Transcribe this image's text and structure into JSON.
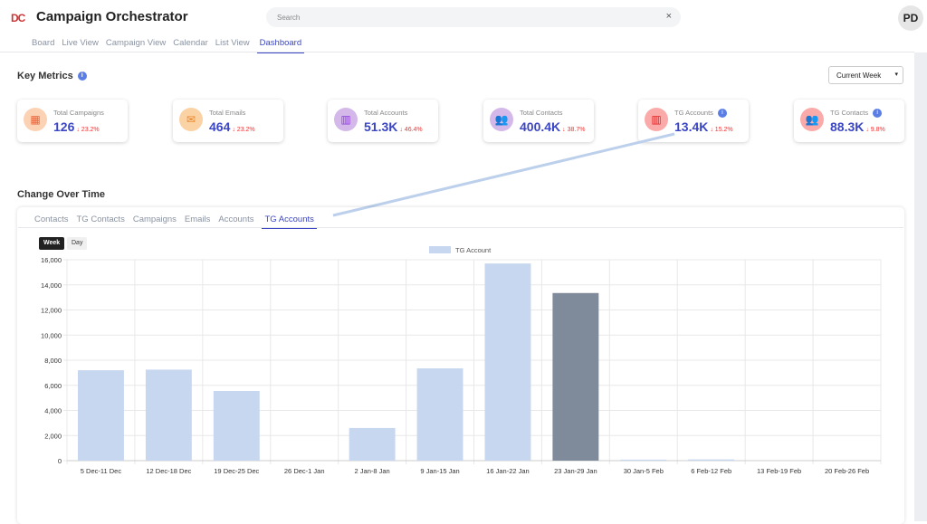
{
  "header": {
    "logo": "DC",
    "title": "Campaign Orchestrator",
    "search_placeholder": "Search",
    "clear": "×",
    "avatar": "PD"
  },
  "nav": [
    "Board",
    "Live View",
    "Campaign View",
    "Calendar",
    "List View",
    "Dashboard"
  ],
  "key_metrics": {
    "title": "Key Metrics",
    "info": "i",
    "period": "Current Week",
    "chevron": "▾"
  },
  "cards": [
    {
      "label": "Total Campaigns",
      "value": "126",
      "change": "↓ 23.2%",
      "icon": "campaign-icon",
      "glyph": "▦",
      "color": "#e8643a",
      "bg": "#fbd2b4"
    },
    {
      "label": "Total Emails",
      "value": "464",
      "change": "↓ 23.2%",
      "icon": "email-icon",
      "glyph": "✉",
      "color": "#e8852a",
      "bg": "#fbd2a4"
    },
    {
      "label": "Total Accounts",
      "value": "51.3K",
      "change": "↓ 46.4%",
      "icon": "building-icon",
      "glyph": "▥",
      "color": "#8a3fd9",
      "bg": "#d5b8ea"
    },
    {
      "label": "Total Contacts",
      "value": "400.4K",
      "change": "↓ 38.7%",
      "icon": "users-icon",
      "glyph": "👥",
      "color": "#8a3fd9",
      "bg": "#d5b8ea"
    },
    {
      "label": "TG Accounts",
      "value": "13.4K",
      "change": "↓ 15.2%",
      "icon": "building-icon",
      "glyph": "▥",
      "color": "#e52222",
      "bg": "#fbaaaa",
      "info": true
    },
    {
      "label": "TG Contacts",
      "value": "88.3K",
      "change": "↓ 9.8%",
      "icon": "users-icon",
      "glyph": "👥",
      "color": "#e52222",
      "bg": "#fbaaaa",
      "info": true
    }
  ],
  "change_over_time": {
    "title": "Change Over Time",
    "tabs": [
      "Contacts",
      "TG Contacts",
      "Campaigns",
      "Emails",
      "Accounts",
      "TG Accounts"
    ],
    "toggle": [
      "Week",
      "Day"
    ]
  },
  "chart_data": {
    "type": "bar",
    "categories": [
      "5 Dec-11 Dec",
      "12 Dec-18 Dec",
      "19 Dec-25 Dec",
      "26 Dec-1 Jan",
      "2 Jan-8 Jan",
      "9 Jan-15 Jan",
      "16 Jan-22 Jan",
      "23 Jan-29 Jan",
      "30 Jan-5 Feb",
      "6 Feb-12 Feb",
      "13 Feb-19 Feb",
      "20 Feb-26 Feb"
    ],
    "series": [
      {
        "name": "TG Account",
        "values": [
          7200,
          7250,
          5550,
          0,
          2600,
          7350,
          15700,
          13350,
          80,
          100,
          0,
          0
        ]
      }
    ],
    "highlight_index": 7,
    "ylim": [
      0,
      16000
    ],
    "yticks": [
      "0",
      "2,000",
      "4,000",
      "6,000",
      "8,000",
      "10,000",
      "12,000",
      "14,000",
      "16,000"
    ],
    "colors": {
      "bar": "#c7d7ef",
      "highlight": "#7f8a9b"
    },
    "legend": "top",
    "grid": true
  }
}
